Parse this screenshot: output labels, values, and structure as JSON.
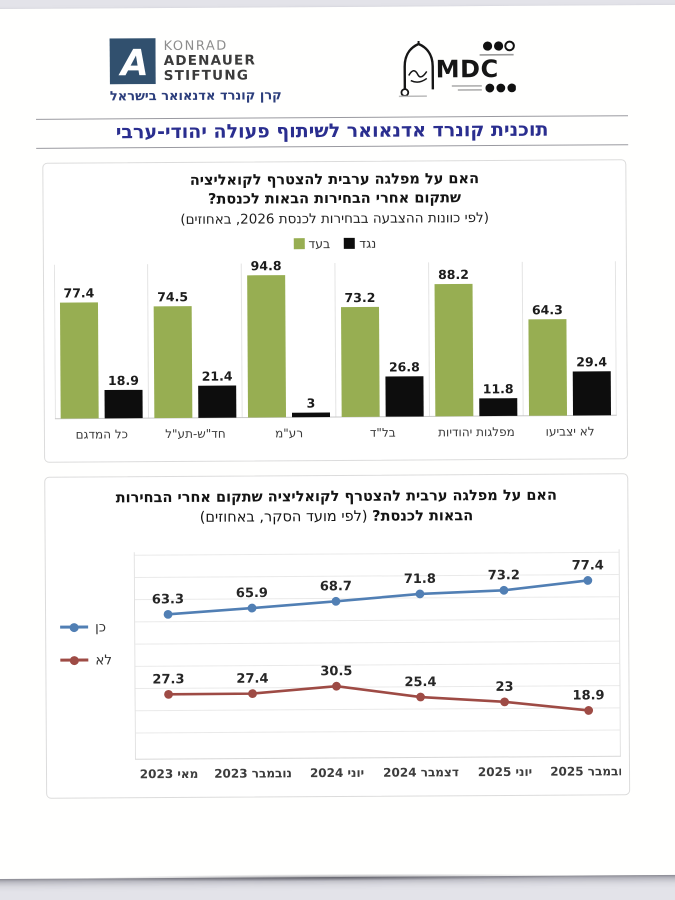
{
  "page": {
    "main_title": "תוכנית קונרד אדנאואר לשיתוף פעולה יהודי-ערבי"
  },
  "header": {
    "kas": {
      "word1": "KONRAD",
      "word2": "ADENAUER",
      "word3": "STIFTUNG",
      "hebrew_caption": "קרן קונרד אדנאואר בישראל",
      "mark_letter": "A",
      "brand_color": "#31506e"
    },
    "mdc": {
      "acronym": "MDC"
    }
  },
  "chart_data": [
    {
      "type": "bar",
      "title": "האם על מפלגה ערבית להצטרף לקואליציה שתקום אחרי הבחירות הבאות לכנסת?",
      "title_lines": [
        "האם על מפלגה ערבית להצטרף לקואליציה",
        "שתקום אחרי הבחירות הבאות לכנסת?"
      ],
      "subtitle": "(לפי כוונות ההצבעה בבחירות לכנסת 2026, באחוזים)",
      "categories": [
        "כל המדגם",
        "חד\"ש-תע\"ל",
        "רע\"מ",
        "בל\"ד",
        "מפלגות יהודיות",
        "לא יצביעו"
      ],
      "series": [
        {
          "name": "בעד",
          "color": "#97ae52",
          "values": [
            77.4,
            74.5,
            94.8,
            73.2,
            88.2,
            64.3
          ]
        },
        {
          "name": "נגד",
          "color": "#0d0d0d",
          "values": [
            18.9,
            21.4,
            3,
            26.8,
            11.8,
            29.4
          ]
        }
      ],
      "ylim": [
        0,
        100
      ],
      "grid": "category-separators",
      "legend_position": "top-center",
      "value_labels": true
    },
    {
      "type": "line",
      "title": "האם על מפלגה ערבית להצטרף לקואליציה שתקום אחרי הבחירות הבאות לכנסת?",
      "subtitle": "(לפי מועד הסקר, באחוזים)",
      "x": [
        "מאי 2023",
        "נובמבר 2023",
        "יוני 2024",
        "דצמבר 2024",
        "יוני 2025",
        "נובמבר 2025"
      ],
      "series": [
        {
          "name": "כן",
          "color": "#517fb4",
          "values": [
            63.3,
            65.9,
            68.7,
            71.8,
            73.2,
            77.4
          ]
        },
        {
          "name": "לא",
          "color": "#9e4b45",
          "values": [
            27.3,
            27.4,
            30.5,
            25.4,
            23,
            18.9
          ]
        }
      ],
      "ylim": [
        0,
        90
      ],
      "grid": "horizontal",
      "legend_position": "left",
      "value_labels": true
    }
  ]
}
